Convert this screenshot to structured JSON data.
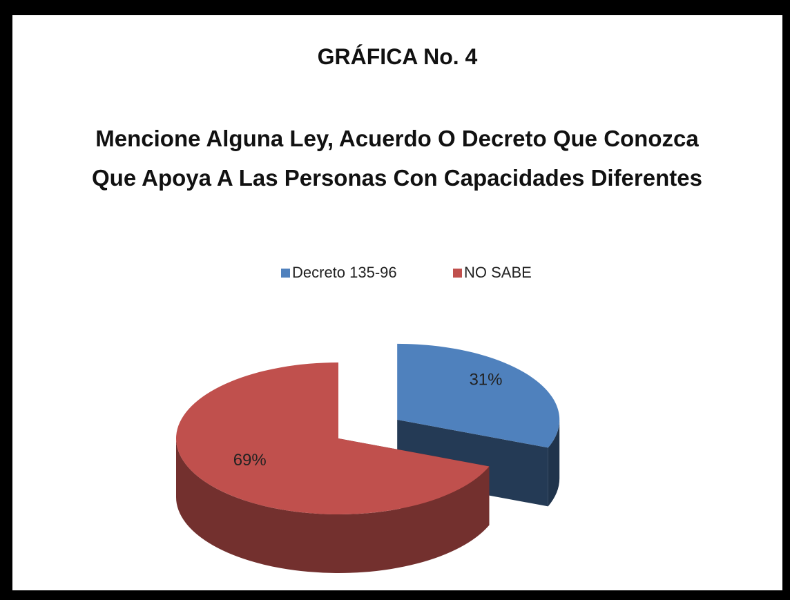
{
  "chart_data": {
    "type": "pie",
    "title": "GRÁFICA No. 4",
    "subtitle": "Mencione Alguna Ley, Acuerdo O Decreto Que Conozca Que Apoya A Las Personas Con Capacidades Diferentes",
    "categories": [
      "Decreto 135-96",
      "NO SABE"
    ],
    "values": [
      31,
      69
    ],
    "value_labels": [
      "31%",
      "69%"
    ],
    "colors": [
      "#4f81bd",
      "#c0504d"
    ],
    "legend": "top"
  }
}
